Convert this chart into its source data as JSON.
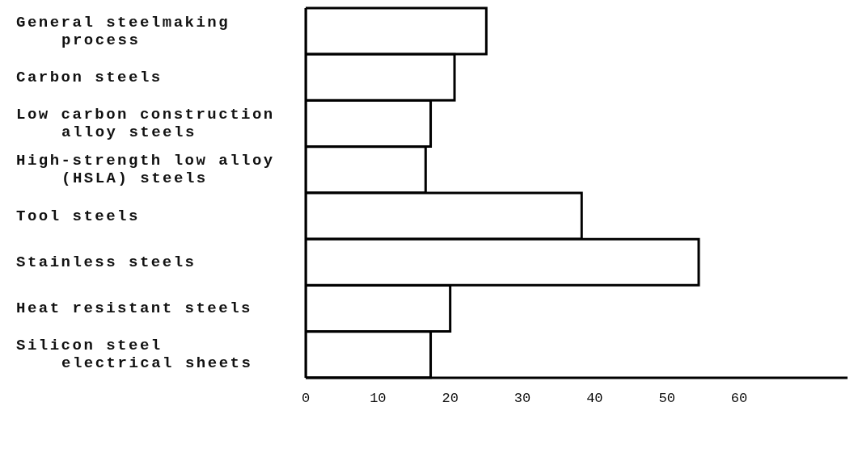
{
  "chart_data": {
    "type": "bar",
    "orientation": "horizontal",
    "categories": [
      "General steelmaking process",
      "Carbon steels",
      "Low carbon construction alloy steels",
      "High-strength low alloy (HSLA) steels",
      "Tool steels",
      "Stainless steels",
      "Heat resistant steels",
      "Silicon steel electrical sheets"
    ],
    "values": [
      25,
      20.6,
      17.3,
      16.6,
      38.2,
      54.4,
      20,
      17.3
    ],
    "color": "#ffffff",
    "xlim": [
      0,
      75
    ],
    "xticks": [
      0,
      10,
      20,
      30,
      40,
      50,
      60
    ],
    "grid": false
  }
}
